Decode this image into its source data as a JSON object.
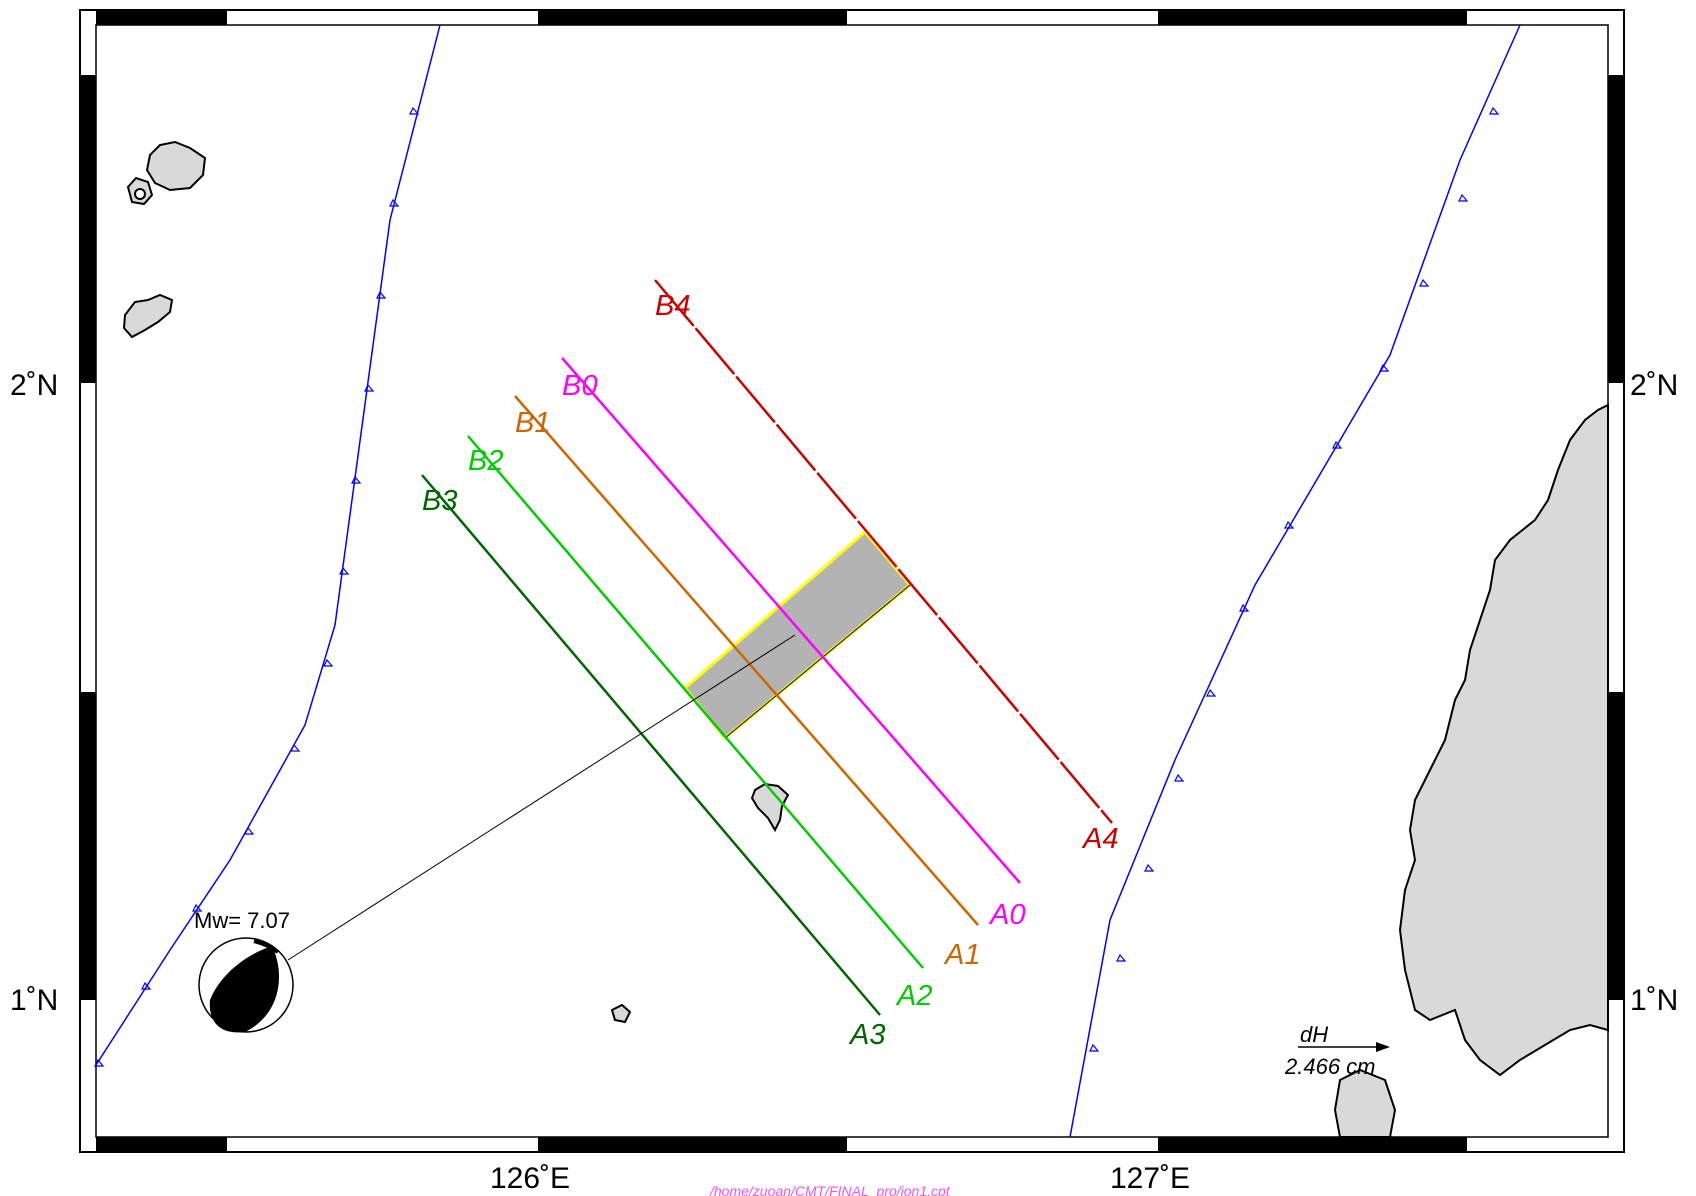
{
  "axes": {
    "lon_labels": [
      "126˚E",
      "127˚E"
    ],
    "lat_labels": [
      "2˚N",
      "1˚N"
    ]
  },
  "profiles": [
    {
      "start": "B0",
      "end": "A0",
      "color": "#ff00ff"
    },
    {
      "start": "B1",
      "end": "A1",
      "color": "#cc6600"
    },
    {
      "start": "B2",
      "end": "A2",
      "color": "#00cc00"
    },
    {
      "start": "B3",
      "end": "A3",
      "color": "#006600"
    },
    {
      "start": "B4",
      "end": "A4",
      "color": "#cc0000"
    }
  ],
  "event": {
    "label": "Mw= 7.07"
  },
  "scale": {
    "label": "dH",
    "value": "2.466 cm"
  },
  "footer": {
    "path": "/home/zuoan/CMT/FINAL_pro/ion1.cpt"
  },
  "colors": {
    "trench": "#0000ff",
    "fault_plane_fill": "#b3b3b3",
    "fault_outline": "#ffff00",
    "land": "#d9d9d9"
  }
}
